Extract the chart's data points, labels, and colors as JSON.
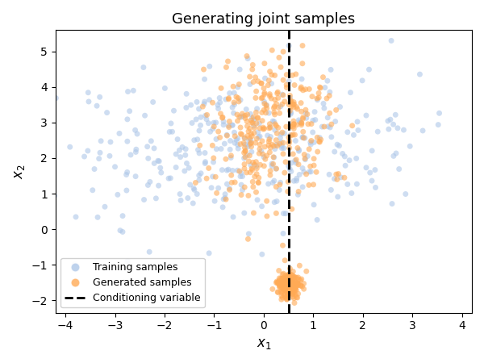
{
  "title": "Generating joint samples",
  "xlabel": "$x_1$",
  "ylabel": "$x_2$",
  "xlim": [
    -4.2,
    4.2
  ],
  "ylim": [
    -2.35,
    5.6
  ],
  "conditioning_x": 0.5,
  "train_color": "#aec7e8",
  "gen_color": "#ffaa55",
  "train_alpha": 0.6,
  "gen_alpha": 0.6,
  "marker_size": 25,
  "seed": 7,
  "n_train": 350,
  "n_gen_spread": 300,
  "n_gen_cluster": 200,
  "legend_labels": [
    "Training samples",
    "Generated samples",
    "Conditioning variable"
  ],
  "xticks": [
    -4,
    -3,
    -2,
    -1,
    0,
    1,
    2,
    3,
    4
  ],
  "yticks": [
    -2,
    -1,
    0,
    1,
    2,
    3,
    4,
    5
  ]
}
